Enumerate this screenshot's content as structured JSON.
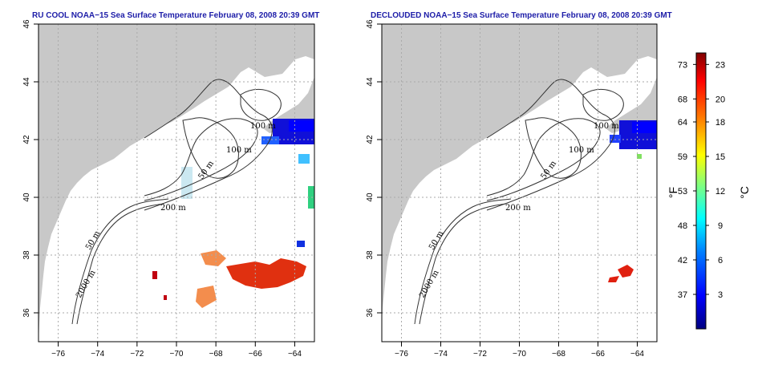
{
  "panels": [
    {
      "title": "RU COOL NOAA−15 Sea Surface Temperature February 08, 2008 20:39 GMT",
      "contour_labels": [
        "100 m",
        "100 m",
        "50 m",
        "200 m",
        "50 m",
        "2000 m"
      ]
    },
    {
      "title": "DECLOUDED NOAA−15 Sea Surface Temperature February 08, 2008 20:39 GMT",
      "contour_labels": [
        "100 m",
        "100 m",
        "50 m",
        "200 m",
        "50 m",
        "2000 m"
      ]
    }
  ],
  "map_axes": {
    "lon_ticks": [
      "−76",
      "−74",
      "−72",
      "−70",
      "−68",
      "−66",
      "−64"
    ],
    "lat_ticks": [
      "46",
      "44",
      "42",
      "40",
      "38",
      "36"
    ],
    "lon_values": [
      -76,
      -74,
      -72,
      -70,
      -68,
      -66,
      -64
    ],
    "lat_values": [
      46,
      44,
      42,
      40,
      38,
      36
    ],
    "lon_range": [
      -77,
      -63
    ],
    "lat_range": [
      35,
      46
    ],
    "grid": "dotted"
  },
  "colorbar": {
    "fahrenheit_ticks": [
      "73",
      "68",
      "64",
      "59",
      "53",
      "48",
      "42",
      "37"
    ],
    "celsius_ticks": [
      "23",
      "20",
      "18",
      "15",
      "12",
      "9",
      "6",
      "3"
    ],
    "celsius_values": [
      23,
      20,
      18,
      15,
      12,
      9,
      6,
      3
    ],
    "fahrenheit_unit": "°F",
    "celsius_unit": "°C",
    "range_c": [
      0,
      24
    ],
    "colors": [
      "#000080",
      "#0000ff",
      "#0080ff",
      "#00ffff",
      "#80ff80",
      "#ffff00",
      "#ff8000",
      "#ff0000",
      "#800000"
    ]
  },
  "colors": {
    "land": "#c8c8c8",
    "ocean": "#ffffff",
    "title": "#1d1da8"
  }
}
